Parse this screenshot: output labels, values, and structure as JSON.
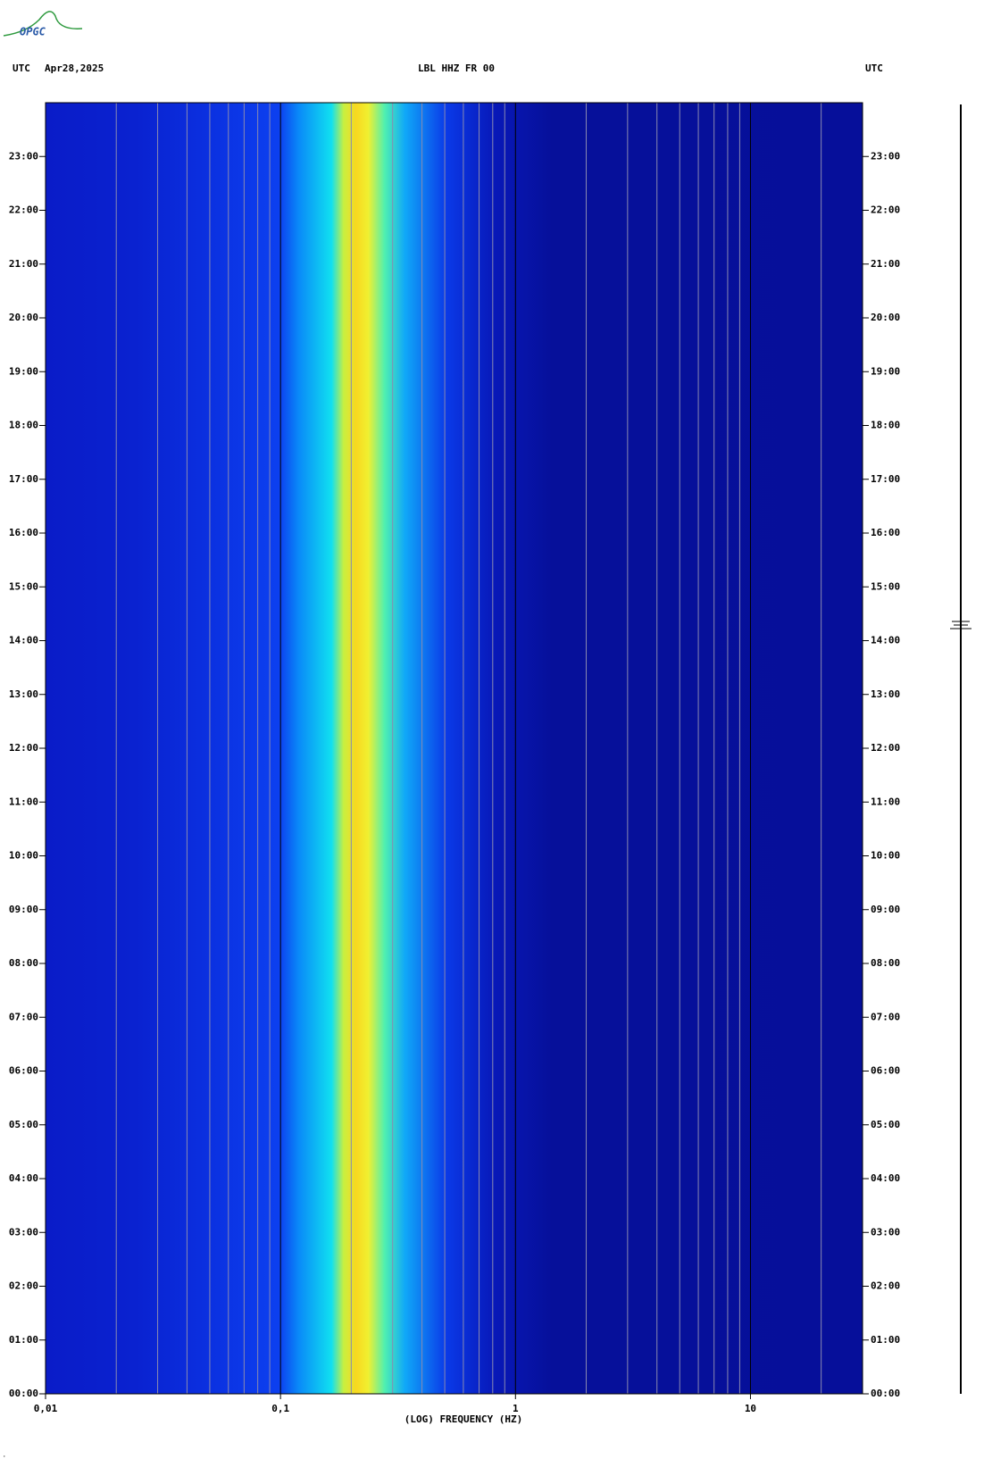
{
  "chart_data": {
    "type": "spectrogram",
    "logo": "OPGC",
    "timezone_left": "UTC",
    "date": "Apr28,2025",
    "title": "LBL HHZ FR 00",
    "timezone_right": "UTC",
    "xlabel": "(LOG) FREQUENCY (HZ)",
    "xscale": "log",
    "xlim": [
      0.01,
      30
    ],
    "xticks": [
      {
        "value": 0.01,
        "label": "0,01"
      },
      {
        "value": 0.1,
        "label": "0,1"
      },
      1,
      10
    ],
    "xgrid": [
      0.02,
      0.03,
      0.04,
      0.05,
      0.06,
      0.07,
      0.08,
      0.09,
      0.2,
      0.3,
      0.4,
      0.5,
      0.6,
      0.7,
      0.8,
      0.9,
      2,
      3,
      4,
      5,
      6,
      7,
      8,
      9,
      20
    ],
    "ylim": [
      0,
      24
    ],
    "yticks": [
      {
        "value": 0,
        "label": "00:00"
      },
      {
        "value": 1,
        "label": "01:00"
      },
      {
        "value": 2,
        "label": "02:00"
      },
      {
        "value": 3,
        "label": "03:00"
      },
      {
        "value": 4,
        "label": "04:00"
      },
      {
        "value": 5,
        "label": "05:00"
      },
      {
        "value": 6,
        "label": "06:00"
      },
      {
        "value": 7,
        "label": "07:00"
      },
      {
        "value": 8,
        "label": "08:00"
      },
      {
        "value": 9,
        "label": "09:00"
      },
      {
        "value": 10,
        "label": "10:00"
      },
      {
        "value": 11,
        "label": "11:00"
      },
      {
        "value": 12,
        "label": "12:00"
      },
      {
        "value": 13,
        "label": "13:00"
      },
      {
        "value": 14,
        "label": "14:00"
      },
      {
        "value": 15,
        "label": "15:00"
      },
      {
        "value": 16,
        "label": "16:00"
      },
      {
        "value": 17,
        "label": "17:00"
      },
      {
        "value": 18,
        "label": "18:00"
      },
      {
        "value": 19,
        "label": "19:00"
      },
      {
        "value": 20,
        "label": "20:00"
      },
      {
        "value": 21,
        "label": "21:00"
      },
      {
        "value": 22,
        "label": "22:00"
      },
      {
        "value": 23,
        "label": "23:00"
      }
    ]
  }
}
